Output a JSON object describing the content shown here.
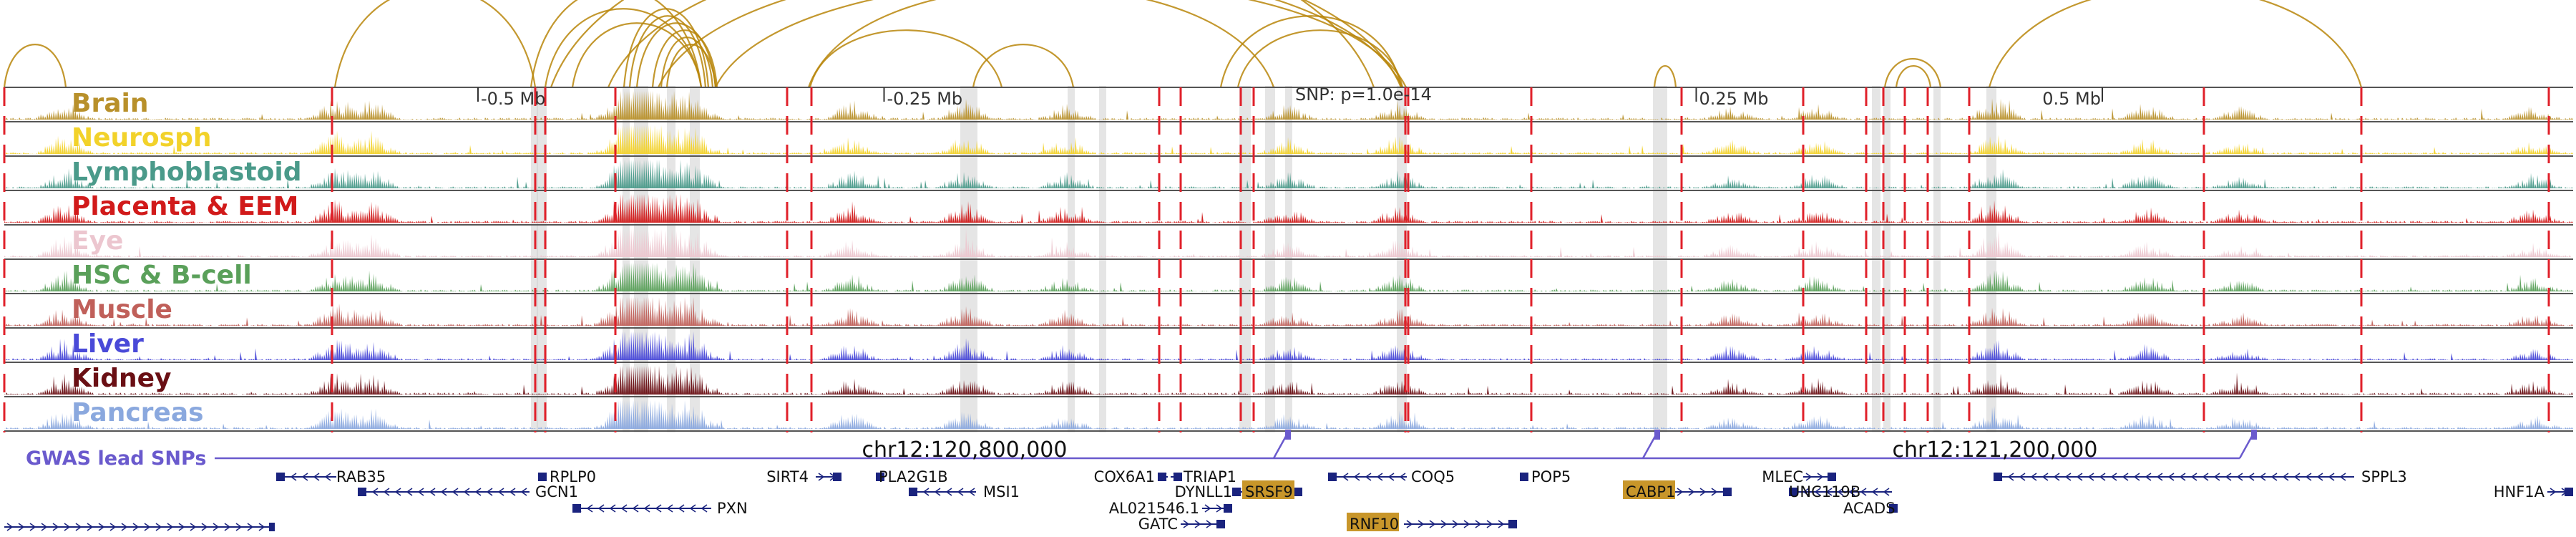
{
  "axis": {
    "ticks": [
      {
        "pos": -0.5,
        "label": "-0.5 Mb"
      },
      {
        "pos": -0.25,
        "label": "-0.25 Mb"
      },
      {
        "pos": 0.25,
        "label": "0.25 Mb"
      },
      {
        "pos": 0.5,
        "label": "0.5 Mb"
      }
    ],
    "snp_label": "SNP: p=1.0e-14"
  },
  "tracks": [
    {
      "name": "Brain",
      "color": "#b8902a"
    },
    {
      "name": "Neurosph",
      "color": "#f2d22a"
    },
    {
      "name": "Lymphoblastoid",
      "color": "#4a9a8a"
    },
    {
      "name": "Placenta & EEM",
      "color": "#d11a1a"
    },
    {
      "name": "Eye",
      "color": "#ecc6cf"
    },
    {
      "name": "HSC & B-cell",
      "color": "#5aa05a"
    },
    {
      "name": "Muscle",
      "color": "#c0605a"
    },
    {
      "name": "Liver",
      "color": "#4a4ad8"
    },
    {
      "name": "Kidney",
      "color": "#6a0f14"
    },
    {
      "name": "Pancreas",
      "color": "#8aa8de"
    }
  ],
  "gwas": {
    "label": "GWAS lead SNPs",
    "color": "#6a5acd",
    "coords": [
      "chr12:120,800,000",
      "chr12:121,200,000"
    ]
  },
  "genes": [
    {
      "name": "RAB35",
      "highlight": false
    },
    {
      "name": "GCN1",
      "highlight": false
    },
    {
      "name": "RPLP0",
      "highlight": false
    },
    {
      "name": "PXN",
      "highlight": false
    },
    {
      "name": "SIRT4",
      "highlight": false
    },
    {
      "name": "PLA2G1B",
      "highlight": false
    },
    {
      "name": "MSI1",
      "highlight": false
    },
    {
      "name": "COX6A1",
      "highlight": false
    },
    {
      "name": "TRIAP1",
      "highlight": false
    },
    {
      "name": "DYNLL1",
      "highlight": false
    },
    {
      "name": "AL021546.1",
      "highlight": false
    },
    {
      "name": "SRSF9",
      "highlight": true
    },
    {
      "name": "GATC",
      "highlight": false
    },
    {
      "name": "COQ5",
      "highlight": false
    },
    {
      "name": "RNF10",
      "highlight": true
    },
    {
      "name": "POP5",
      "highlight": false
    },
    {
      "name": "CABP1",
      "highlight": true
    },
    {
      "name": "MLEC",
      "highlight": false
    },
    {
      "name": "UNC119B",
      "highlight": false
    },
    {
      "name": "ACADS",
      "highlight": false
    },
    {
      "name": "SPPL3",
      "highlight": false
    },
    {
      "name": "HNF1A",
      "highlight": false
    }
  ],
  "colors": {
    "arc": "#b8860b",
    "gene": "#1a237e",
    "gene_highlight_bg": "#c8962a",
    "separator": "#555555",
    "marker_red": "#e0202a",
    "band_gray": "#d0d0d0"
  }
}
